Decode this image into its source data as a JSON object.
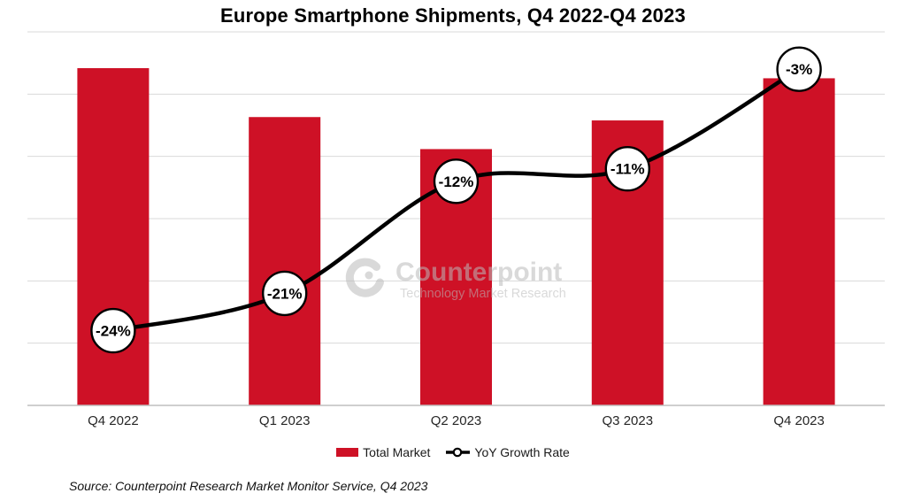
{
  "source": "Source: Counterpoint Research Market Monitor Service, Q4 2023",
  "watermark": {
    "brand": "Counterpoint",
    "tagline": "Technology Market Research"
  },
  "colors": {
    "bar_red": "#CE1126",
    "line_black": "#000000",
    "gridline": "#D9D9D9",
    "axis_line": "#BFBFBF",
    "marker_fill": "#FFFFFF",
    "label_text": "#000000",
    "watermark_gray": "rgba(185,185,185,0.55)"
  },
  "chart_data": {
    "type": "combo",
    "title": "Europe Smartphone Shipments, Q4 2022-Q4 2023",
    "categories": [
      "Q4 2022",
      "Q1 2023",
      "Q2 2023",
      "Q3 2023",
      "Q4 2023"
    ],
    "series": [
      {
        "name": "Total Market",
        "type": "bar",
        "color": "#CE1126",
        "values_index": [
          100,
          85.5,
          76,
          84.5,
          97
        ],
        "note": "Volume axis unlabeled in chart; bar values estimated relative to Q4 2022 = 100"
      },
      {
        "name": "YoY Growth Rate",
        "type": "line",
        "color": "#000000",
        "values_pct": [
          -24,
          -21,
          -12,
          -11,
          -3
        ],
        "labels": [
          "-24%",
          "-21%",
          "-12%",
          "-11%",
          "-3%"
        ]
      }
    ],
    "growth_axis_range": [
      -30,
      0
    ],
    "gridline_step_pct": 5,
    "grid": true,
    "legend_position": "bottom",
    "y_axis_labels_visible": false
  }
}
